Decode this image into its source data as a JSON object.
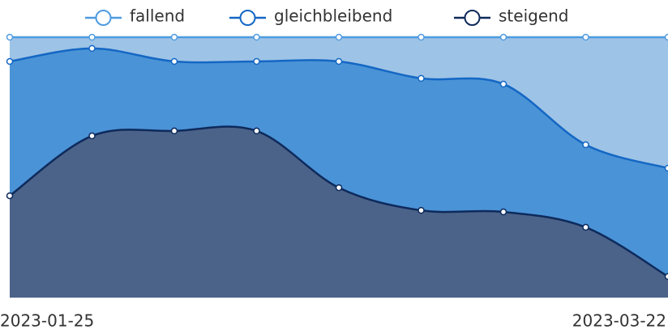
{
  "chart_data": {
    "type": "stacked-area",
    "categories": [
      "2023-01-25",
      null,
      null,
      null,
      null,
      null,
      null,
      null,
      "2023-03-22"
    ],
    "ylim": [
      0,
      100
    ],
    "series": [
      {
        "name": "fallend",
        "color": "#9dc3e6",
        "line_color": "#4f9be0",
        "values": [
          9.3,
          4.3,
          9.3,
          9.3,
          9.3,
          15.8,
          18.0,
          41.3,
          50.3
        ]
      },
      {
        "name": "gleichbleibend",
        "color": "#4a93d6",
        "line_color": "#1467c4",
        "values": [
          51.6,
          33.6,
          26.7,
          26.7,
          48.5,
          50.7,
          49.1,
          31.7,
          41.6
        ]
      },
      {
        "name": "steigend",
        "color": "#4b6388",
        "line_color": "#0e2a5c",
        "values": [
          39.1,
          62.1,
          64.0,
          64.0,
          42.2,
          33.5,
          32.9,
          27.0,
          8.1
        ]
      }
    ]
  }
}
